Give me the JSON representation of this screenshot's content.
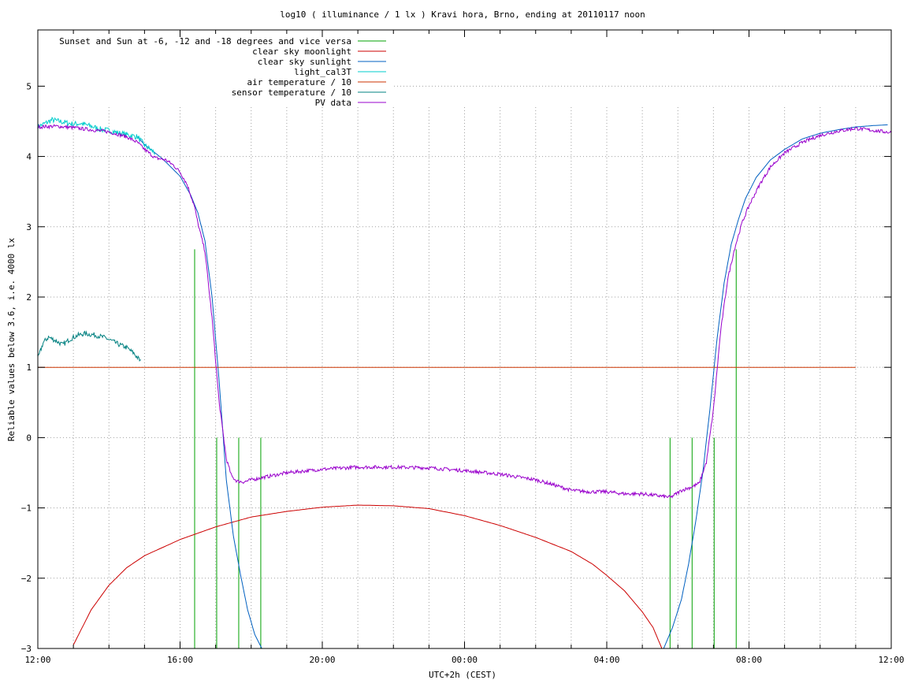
{
  "chart_data": {
    "type": "line",
    "title": "log10 ( illuminance / 1 lx ) Kravi hora, Brno, ending at 20110117 noon",
    "xlabel": "UTC+2h (CEST)",
    "ylabel": "Reliable values below 3.6, i.e. 4000 lx",
    "xlim": [
      12,
      36
    ],
    "ylim": [
      -3,
      5.8
    ],
    "x_ticks": [
      {
        "pos": 12,
        "label": "12:00"
      },
      {
        "pos": 16,
        "label": "16:00"
      },
      {
        "pos": 20,
        "label": "20:00"
      },
      {
        "pos": 24,
        "label": "00:00"
      },
      {
        "pos": 28,
        "label": "04:00"
      },
      {
        "pos": 32,
        "label": "08:00"
      },
      {
        "pos": 36,
        "label": "12:00"
      }
    ],
    "y_ticks": [
      {
        "pos": -3,
        "label": "−3"
      },
      {
        "pos": -2,
        "label": "−2"
      },
      {
        "pos": -1,
        "label": "−1"
      },
      {
        "pos": 0,
        "label": "0"
      },
      {
        "pos": 1,
        "label": "1"
      },
      {
        "pos": 2,
        "label": "2"
      },
      {
        "pos": 3,
        "label": "3"
      },
      {
        "pos": 4,
        "label": "4"
      },
      {
        "pos": 5,
        "label": "5"
      }
    ],
    "x_grid_step": 1,
    "grid": true,
    "legend_position": "top-left",
    "series": [
      {
        "name": "Sunset and Sun at -6, -12 and -18 degrees and vice versa",
        "color": "#00a000",
        "style": "impulses",
        "x": [
          16.41,
          17.03,
          17.65,
          18.27,
          29.78,
          30.4,
          31.02,
          31.64
        ],
        "y": [
          2.68,
          0,
          0,
          0,
          0,
          0,
          0,
          2.68
        ]
      },
      {
        "name": "clear sky moonlight",
        "color": "#cc0000",
        "x": [
          13.0,
          13.5,
          14.0,
          14.5,
          15.0,
          16.0,
          17.0,
          18.0,
          19.0,
          20.0,
          21.0,
          22.0,
          23.0,
          24.0,
          25.0,
          26.0,
          27.0,
          27.6,
          28.0,
          28.5,
          29.0,
          29.3,
          29.55
        ],
        "y": [
          -2.95,
          -2.45,
          -2.1,
          -1.85,
          -1.68,
          -1.45,
          -1.27,
          -1.13,
          -1.05,
          -0.99,
          -0.96,
          -0.97,
          -1.01,
          -1.11,
          -1.25,
          -1.42,
          -1.62,
          -1.8,
          -1.96,
          -2.18,
          -2.48,
          -2.7,
          -3.0
        ]
      },
      {
        "name": "clear sky sunlight",
        "color": "#0060c0",
        "x": [
          14.8,
          15.0,
          15.5,
          16.0,
          16.3,
          16.5,
          16.7,
          16.9,
          17.1,
          17.3,
          17.5,
          17.7,
          17.9,
          18.1,
          18.3,
          29.6,
          29.85,
          30.1,
          30.3,
          30.5,
          30.7,
          30.9,
          31.1,
          31.3,
          31.5,
          31.7,
          31.9,
          32.2,
          32.6,
          33.0,
          33.5,
          34.0,
          34.5,
          35.0,
          35.5,
          35.9
        ],
        "y": [
          4.28,
          4.17,
          3.97,
          3.72,
          3.45,
          3.2,
          2.8,
          2.0,
          0.8,
          -0.6,
          -1.4,
          -1.95,
          -2.45,
          -2.8,
          -3.0,
          -3.0,
          -2.7,
          -2.3,
          -1.8,
          -1.2,
          -0.5,
          0.4,
          1.4,
          2.2,
          2.75,
          3.1,
          3.4,
          3.7,
          3.95,
          4.1,
          4.25,
          4.33,
          4.38,
          4.42,
          4.44,
          4.45
        ]
      },
      {
        "name": "light_cal3T",
        "color": "#00cccc",
        "noise": 0.04,
        "x": [
          12.0,
          12.2,
          12.4,
          12.6,
          12.8,
          13.0,
          13.2,
          13.5,
          13.8,
          14.0,
          14.3,
          14.6,
          14.8,
          15.0,
          15.3
        ],
        "y": [
          4.42,
          4.47,
          4.52,
          4.5,
          4.48,
          4.46,
          4.47,
          4.43,
          4.38,
          4.37,
          4.33,
          4.3,
          4.28,
          4.16,
          4.05
        ]
      },
      {
        "name": "air temperature / 10",
        "color": "#cc3300",
        "x": [
          12.0,
          35.0
        ],
        "y": [
          1.0,
          1.0
        ]
      },
      {
        "name": "sensor temperature / 10",
        "color": "#008080",
        "noise": 0.035,
        "x": [
          12.0,
          12.15,
          12.3,
          12.5,
          12.7,
          12.9,
          13.1,
          13.3,
          13.6,
          13.9,
          14.1,
          14.3,
          14.5,
          14.7,
          14.9
        ],
        "y": [
          1.12,
          1.35,
          1.43,
          1.38,
          1.32,
          1.4,
          1.45,
          1.48,
          1.46,
          1.42,
          1.37,
          1.32,
          1.28,
          1.2,
          1.08
        ]
      },
      {
        "name": "PV data",
        "color": "#9900cc",
        "noise": 0.025,
        "x": [
          12.0,
          12.5,
          13.0,
          13.5,
          14.0,
          14.5,
          14.8,
          15.0,
          15.3,
          15.6,
          15.8,
          16.0,
          16.2,
          16.4,
          16.5,
          16.7,
          16.9,
          17.1,
          17.3,
          17.45,
          17.6,
          17.8,
          18.0,
          18.5,
          19.0,
          20.0,
          21.0,
          22.0,
          23.0,
          24.0,
          25.0,
          26.0,
          26.5,
          27.0,
          27.5,
          28.0,
          28.5,
          29.0,
          29.5,
          29.8,
          30.1,
          30.4,
          30.6,
          30.8,
          31.0,
          31.2,
          31.4,
          31.6,
          31.8,
          32.0,
          32.3,
          32.6,
          33.0,
          33.5,
          34.0,
          34.5,
          35.0,
          35.5,
          36.0
        ],
        "y": [
          4.42,
          4.43,
          4.41,
          4.38,
          4.35,
          4.28,
          4.2,
          4.1,
          3.98,
          3.95,
          3.88,
          3.78,
          3.6,
          3.3,
          3.05,
          2.65,
          1.7,
          0.5,
          -0.3,
          -0.55,
          -0.62,
          -0.63,
          -0.6,
          -0.55,
          -0.5,
          -0.45,
          -0.42,
          -0.42,
          -0.43,
          -0.47,
          -0.52,
          -0.6,
          -0.67,
          -0.75,
          -0.77,
          -0.77,
          -0.8,
          -0.8,
          -0.83,
          -0.85,
          -0.75,
          -0.7,
          -0.65,
          -0.35,
          0.4,
          1.5,
          2.25,
          2.7,
          3.05,
          3.3,
          3.6,
          3.85,
          4.05,
          4.2,
          4.3,
          4.36,
          4.4,
          4.37,
          4.34
        ]
      }
    ]
  }
}
